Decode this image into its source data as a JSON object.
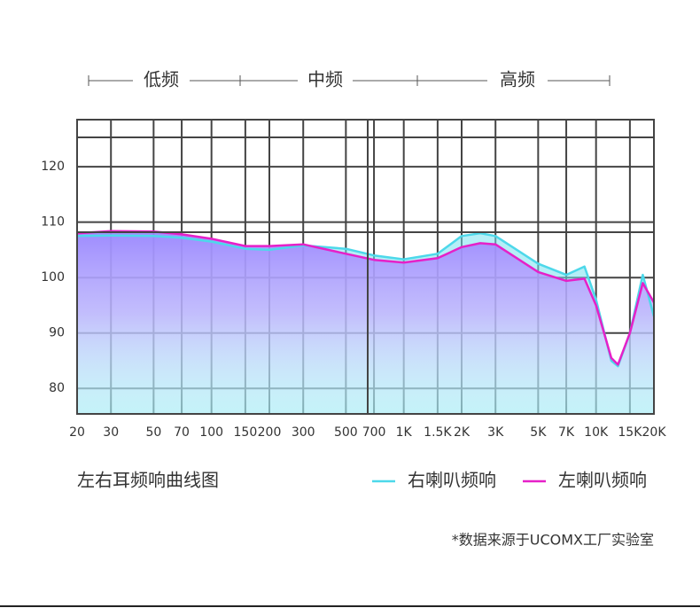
{
  "chart_data": {
    "type": "line",
    "bands": [
      "低频",
      "中频",
      "高频"
    ],
    "title": "左右耳频响曲线图",
    "note": "*数据来源于UCOMX工厂实验室",
    "x": [
      20,
      30,
      50,
      70,
      100,
      150,
      200,
      300,
      500,
      700,
      1000,
      1500,
      2000,
      2500,
      3000,
      5000,
      7000,
      8700,
      10000,
      12000,
      13000,
      15000,
      17500,
      20000
    ],
    "xscale": "log",
    "xlim": [
      20,
      20000
    ],
    "xticks": [
      20,
      30,
      50,
      70,
      100,
      150,
      200,
      300,
      500,
      700,
      {
        "value": 1000,
        "label": "1K"
      },
      {
        "value": 1500,
        "label": "1.5K"
      },
      {
        "value": 2000,
        "label": "2K"
      },
      {
        "value": 3000,
        "label": "3K"
      },
      {
        "value": 5000,
        "label": "5K"
      },
      {
        "value": 7000,
        "label": "7K"
      },
      {
        "value": 10000,
        "label": "10K"
      },
      {
        "value": 15000,
        "label": "15K"
      },
      {
        "value": 20000,
        "label": "20K"
      }
    ],
    "ylim": [
      75.4,
      128.5
    ],
    "yticks": [
      80,
      90,
      100,
      110,
      120
    ],
    "grid": true,
    "series": [
      {
        "name": "右喇叭频响",
        "color": "#4dd8ea",
        "values": [
          107.5,
          107.6,
          107.5,
          107.2,
          106.5,
          105.2,
          105,
          105.8,
          105.2,
          104,
          103.3,
          104.3,
          107.5,
          108,
          107.5,
          102.5,
          100.5,
          102,
          96,
          85,
          84,
          90,
          100.5,
          93
        ]
      },
      {
        "name": "左喇叭频响",
        "color": "#e620c8",
        "values": [
          108,
          108.4,
          108.3,
          107.8,
          107,
          105.7,
          105.7,
          106,
          104.3,
          103.2,
          102.7,
          103.5,
          105.5,
          106.2,
          106,
          101,
          99.4,
          99.8,
          95,
          85.5,
          84.3,
          90,
          99,
          95.5
        ]
      }
    ]
  }
}
